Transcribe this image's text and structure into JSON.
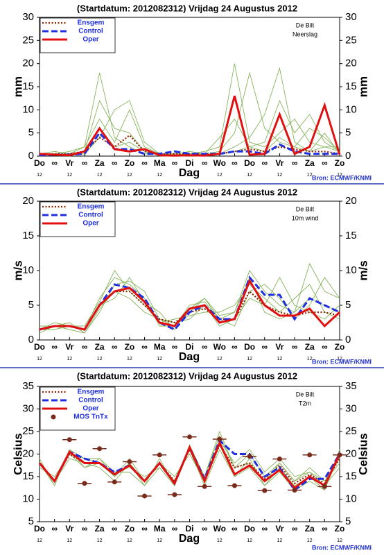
{
  "chart_data": [
    {
      "type": "line",
      "title": "(Startdatum: 2012082312)   Vrijdag   24 Augustus  2012",
      "location": "De Bilt",
      "variable": "Neerslag",
      "ylabel": "mm",
      "xlabel": "Dag",
      "source": "Bron: ECMWF/KNMI",
      "categories": [
        "Do",
        "∞",
        "Vr",
        "∞",
        "Za",
        "∞",
        "Zo",
        "∞",
        "Ma",
        "∞",
        "Di",
        "∞",
        "Wo",
        "∞",
        "Do",
        "∞",
        "Vr",
        "∞",
        "Za",
        "∞",
        "Zo"
      ],
      "sublabels": [
        "12",
        null,
        "12",
        null,
        "12",
        null,
        "12",
        null,
        "12",
        null,
        "12",
        null,
        "12",
        null,
        "12",
        null,
        "12",
        null,
        "12",
        null,
        "12"
      ],
      "ylim": [
        0,
        30
      ],
      "yticks": [
        0,
        5,
        10,
        15,
        20,
        25,
        30
      ],
      "members": {
        "color": "#86b35a",
        "values": [
          [
            0.5,
            0.5,
            1,
            2,
            8,
            3,
            10,
            2,
            0.5,
            0.2,
            0.5,
            1,
            2,
            20,
            3,
            2,
            5,
            8,
            3,
            2,
            1
          ],
          [
            0.2,
            0.3,
            0.5,
            1,
            12,
            6,
            5,
            1,
            0.2,
            0.5,
            1,
            0.5,
            1,
            5,
            18,
            6,
            3,
            2,
            6,
            4,
            1
          ],
          [
            0.5,
            1,
            0.5,
            2,
            18,
            4,
            2,
            0.5,
            0.5,
            0.2,
            0.3,
            0.2,
            0.5,
            2,
            4,
            9,
            19,
            3,
            1,
            2,
            2
          ],
          [
            0.3,
            0.2,
            0.2,
            0.5,
            4,
            10,
            12,
            3,
            0.5,
            0.5,
            0.3,
            0.5,
            4,
            8,
            2,
            3,
            12,
            5,
            9,
            3,
            1
          ],
          [
            0.2,
            0.5,
            0.3,
            1,
            6,
            2,
            3,
            1,
            0.2,
            0.1,
            0.2,
            0.2,
            0.5,
            1,
            2,
            1,
            4,
            2,
            1,
            5,
            0.5
          ]
        ]
      },
      "series": [
        {
          "name": "Ensgem",
          "color": "#8b2500",
          "style": "dotted",
          "values": [
            0.3,
            0.5,
            0.5,
            1,
            4,
            2,
            4.5,
            1,
            0.5,
            0.5,
            0.5,
            0.5,
            0.5,
            1,
            1.5,
            1,
            2,
            1.5,
            1,
            1,
            0.5
          ]
        },
        {
          "name": "Control",
          "color": "#1f2fe0",
          "style": "dashed",
          "values": [
            0.2,
            0.3,
            0.3,
            0.5,
            5,
            1.5,
            1.5,
            0.5,
            0.5,
            1,
            0.5,
            0.5,
            0.5,
            1,
            1,
            0.5,
            2.5,
            1,
            0.5,
            0.5,
            0.5
          ]
        },
        {
          "name": "Oper",
          "color": "#e01010",
          "style": "solid",
          "values": [
            0.5,
            0.3,
            0.2,
            1,
            6,
            1.5,
            1,
            1.5,
            0.2,
            0.1,
            0.2,
            0.1,
            0.5,
            13,
            0.3,
            0.5,
            9,
            0.5,
            2,
            11,
            0.3
          ]
        }
      ]
    },
    {
      "type": "line",
      "title": "(Startdatum: 2012082312)   Vrijdag   24 Augustus  2012",
      "location": "De Bilt",
      "variable": "10m wind",
      "ylabel": "m/s",
      "xlabel": "Dag",
      "source": "Bron: ECMWF/KNMI",
      "categories": [
        "Do",
        "∞",
        "Vr",
        "∞",
        "Za",
        "∞",
        "Zo",
        "∞",
        "Ma",
        "∞",
        "Di",
        "∞",
        "Wo",
        "∞",
        "Do",
        "∞",
        "Vr",
        "∞",
        "Za",
        "∞",
        "Zo"
      ],
      "sublabels": [
        "12",
        null,
        "12",
        null,
        "12",
        null,
        "12",
        null,
        "12",
        null,
        "12",
        null,
        "12",
        null,
        "12",
        null,
        "12",
        null,
        "12",
        null,
        "12"
      ],
      "ylim": [
        0,
        20
      ],
      "yticks": [
        0,
        5,
        10,
        15,
        20
      ],
      "members": {
        "color": "#86b35a",
        "values": [
          [
            1.5,
            2.5,
            2,
            1.5,
            6,
            9,
            8,
            6,
            2,
            2,
            4,
            6,
            3,
            4,
            10,
            7,
            5,
            4,
            6,
            5,
            4
          ],
          [
            1,
            2,
            2.5,
            1,
            4,
            8,
            8.5,
            7,
            3,
            2,
            5,
            5.5,
            3,
            2,
            7,
            8,
            6,
            3,
            5,
            9,
            6
          ],
          [
            1.5,
            1.5,
            2,
            2,
            5.5,
            10,
            7,
            5,
            2.5,
            3,
            3.5,
            4,
            4,
            5,
            8,
            6,
            4,
            6,
            8,
            4,
            3
          ],
          [
            2,
            2,
            1.5,
            1,
            4.5,
            7,
            6,
            4,
            3,
            2.5,
            3,
            5,
            2,
            3,
            6,
            5,
            9,
            5,
            4,
            3,
            5
          ],
          [
            1.5,
            2,
            2,
            1.5,
            5,
            6,
            9,
            5.5,
            4,
            1.5,
            4.5,
            6,
            3.5,
            4,
            9,
            4,
            3,
            4,
            11,
            7,
            6
          ]
        ]
      },
      "series": [
        {
          "name": "Ensgem",
          "color": "#8b2500",
          "style": "dotted",
          "values": [
            1.5,
            2,
            2,
            1.5,
            5,
            7,
            7,
            5,
            3,
            2.5,
            4,
            4.5,
            3,
            3,
            7,
            5,
            4,
            3.5,
            4,
            4,
            3.5
          ]
        },
        {
          "name": "Control",
          "color": "#1f2fe0",
          "style": "dashed",
          "values": [
            1.5,
            2,
            2,
            1.5,
            5,
            8,
            7.5,
            6,
            2.5,
            1.5,
            4,
            5,
            3,
            3,
            9,
            6.5,
            6.5,
            3,
            6,
            5,
            4
          ]
        },
        {
          "name": "Oper",
          "color": "#e01010",
          "style": "solid",
          "values": [
            1.5,
            2,
            2,
            1.5,
            5,
            7,
            7.5,
            5.5,
            2.5,
            2,
            4.5,
            5,
            2.5,
            3,
            8.5,
            5,
            3.5,
            3.5,
            4.5,
            2,
            4
          ]
        }
      ]
    },
    {
      "type": "line",
      "title": "(Startdatum: 2012082312)   Vrijdag   24 Augustus  2012",
      "location": "De Bilt",
      "variable": "T2m",
      "ylabel": "Celsius",
      "xlabel": "Dag",
      "source": "Bron: ECMWF/KNMI",
      "categories": [
        "Do",
        "∞",
        "Vr",
        "∞",
        "Za",
        "∞",
        "Zo",
        "∞",
        "Ma",
        "∞",
        "Di",
        "∞",
        "Wo",
        "∞",
        "Do",
        "∞",
        "Vr",
        "∞",
        "Za",
        "∞",
        "Zo"
      ],
      "sublabels": [
        "12",
        null,
        "12",
        null,
        "12",
        null,
        "12",
        null,
        "12",
        null,
        "12",
        null,
        "12",
        null,
        "12",
        null,
        "12",
        null,
        "12",
        null,
        "12"
      ],
      "ylim": [
        5,
        35
      ],
      "yticks": [
        5,
        10,
        15,
        20,
        25,
        30,
        35
      ],
      "members": {
        "color": "#86b35a",
        "values": [
          [
            18,
            13,
            21,
            19,
            18,
            15,
            18,
            13,
            19,
            13,
            22,
            15,
            24,
            17,
            20,
            15,
            18,
            14,
            17,
            14,
            19
          ],
          [
            17,
            15,
            20,
            17,
            19,
            16,
            17,
            15,
            17,
            13,
            21,
            13,
            21,
            15,
            17,
            13,
            16,
            12,
            14,
            12,
            21
          ],
          [
            18,
            14,
            19,
            18,
            17,
            14,
            18,
            14,
            18,
            15,
            20,
            14,
            23,
            18,
            21,
            16,
            19,
            15,
            16,
            14,
            18
          ],
          [
            19,
            13,
            21,
            17,
            18,
            16,
            16,
            13,
            17,
            13,
            22,
            14,
            22,
            15,
            19,
            13,
            17,
            13,
            15,
            12,
            20
          ],
          [
            18,
            14,
            20,
            19,
            19,
            15,
            19,
            14,
            18,
            14,
            21,
            15,
            25,
            17,
            18,
            14,
            18,
            14,
            16,
            13,
            17
          ]
        ]
      },
      "series": [
        {
          "name": "Ensgem",
          "color": "#8b2500",
          "style": "dotted",
          "values": [
            18,
            14,
            20,
            18,
            18,
            15.5,
            17.5,
            14,
            18,
            14,
            21,
            14,
            22,
            17,
            18,
            14.5,
            17.5,
            13.5,
            15.5,
            13.5,
            19
          ]
        },
        {
          "name": "Control",
          "color": "#1f2fe0",
          "style": "dashed",
          "values": [
            18,
            14,
            20.5,
            19,
            18,
            16,
            17.5,
            14,
            18,
            13.5,
            21.5,
            14.5,
            23,
            20,
            20,
            15,
            17,
            12,
            14.5,
            14.5,
            20
          ]
        },
        {
          "name": "Oper",
          "color": "#e01010",
          "style": "solid",
          "values": [
            18,
            14,
            20.5,
            18,
            18,
            15.5,
            17.5,
            14,
            18,
            13.5,
            21.5,
            14,
            22.5,
            15.5,
            17.5,
            14,
            16.5,
            12.5,
            15,
            13,
            20
          ]
        },
        {
          "name": "MOS TnTx",
          "color": "#7a2a1a",
          "style": "points",
          "values": [
            null,
            null,
            23.2,
            13.5,
            21.2,
            13.8,
            18.3,
            10.7,
            19.8,
            11.0,
            23.8,
            12.8,
            23.3,
            13.0,
            19.5,
            11.9,
            18.9,
            12.0,
            19.8,
            12.8,
            19.8
          ]
        }
      ]
    }
  ]
}
